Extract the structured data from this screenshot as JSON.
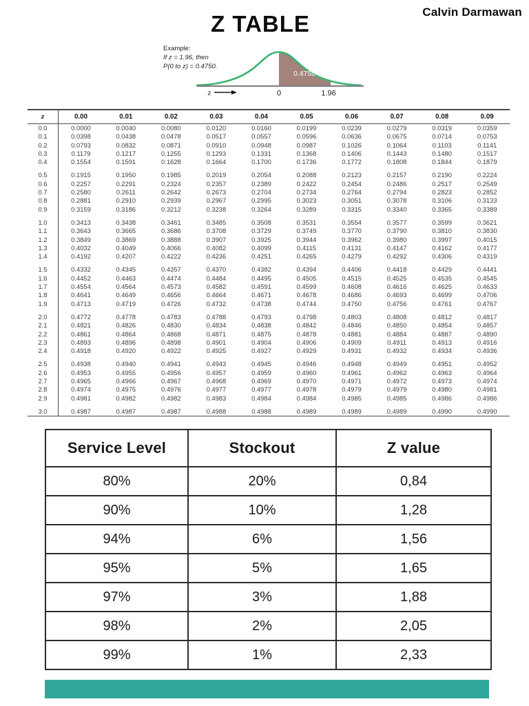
{
  "page": {
    "title": "Z TABLE",
    "author": "Calvin Darmawan"
  },
  "example": {
    "line1": "Example:",
    "line2": "If z = 1.96, then",
    "line3": "P(0 to z) = 0.4750.",
    "area_label": "0.4750",
    "axis_var": "z",
    "tick_zero": "0",
    "tick_z": "1.96",
    "curve_color": "#3cb371",
    "area_color": "#a3837c",
    "axis_color": "#7d7d7d"
  },
  "z_table": {
    "corner": "z",
    "columns": [
      "0.00",
      "0.01",
      "0.02",
      "0.03",
      "0.04",
      "0.05",
      "0.06",
      "0.07",
      "0.08",
      "0.09"
    ],
    "rows": [
      {
        "z": "0.0",
        "v": [
          "0.0000",
          "0.0040",
          "0.0080",
          "0.0120",
          "0.0160",
          "0.0199",
          "0.0239",
          "0.0279",
          "0.0319",
          "0.0359"
        ]
      },
      {
        "z": "0.1",
        "v": [
          "0.0398",
          "0.0438",
          "0.0478",
          "0.0517",
          "0.0557",
          "0.0596",
          "0.0636",
          "0.0675",
          "0.0714",
          "0.0753"
        ]
      },
      {
        "z": "0.2",
        "v": [
          "0.0793",
          "0.0832",
          "0.0871",
          "0.0910",
          "0.0948",
          "0.0987",
          "0.1026",
          "0.1064",
          "0.1103",
          "0.1141"
        ]
      },
      {
        "z": "0.3",
        "v": [
          "0.1179",
          "0.1217",
          "0.1255",
          "0.1293",
          "0.1331",
          "0.1368",
          "0.1406",
          "0.1443",
          "0.1480",
          "0.1517"
        ]
      },
      {
        "z": "0.4",
        "v": [
          "0.1554",
          "0.1591",
          "0.1628",
          "0.1664",
          "0.1700",
          "0.1736",
          "0.1772",
          "0.1808",
          "0.1844",
          "0.1879"
        ]
      },
      {
        "z": "0.5",
        "v": [
          "0.1915",
          "0.1950",
          "0.1985",
          "0.2019",
          "0.2054",
          "0.2088",
          "0.2123",
          "0.2157",
          "0.2190",
          "0.2224"
        ]
      },
      {
        "z": "0.6",
        "v": [
          "0.2257",
          "0.2291",
          "0.2324",
          "0.2357",
          "0.2389",
          "0.2422",
          "0.2454",
          "0.2486",
          "0.2517",
          "0.2549"
        ]
      },
      {
        "z": "0.7",
        "v": [
          "0.2580",
          "0.2611",
          "0.2642",
          "0.2673",
          "0.2704",
          "0.2734",
          "0.2764",
          "0.2794",
          "0.2823",
          "0.2852"
        ]
      },
      {
        "z": "0.8",
        "v": [
          "0.2881",
          "0.2910",
          "0.2939",
          "0.2967",
          "0.2995",
          "0.3023",
          "0.3051",
          "0.3078",
          "0.3106",
          "0.3133"
        ]
      },
      {
        "z": "0.9",
        "v": [
          "0.3159",
          "0.3186",
          "0.3212",
          "0.3238",
          "0.3264",
          "0.3289",
          "0.3315",
          "0.3340",
          "0.3365",
          "0.3389"
        ]
      },
      {
        "z": "1.0",
        "v": [
          "0.3413",
          "0.3438",
          "0.3461",
          "0.3485",
          "0.3508",
          "0.3531",
          "0.3554",
          "0.3577",
          "0.3599",
          "0.3621"
        ]
      },
      {
        "z": "1.1",
        "v": [
          "0.3643",
          "0.3665",
          "0.3686",
          "0.3708",
          "0.3729",
          "0.3749",
          "0.3770",
          "0.3790",
          "0.3810",
          "0.3830"
        ]
      },
      {
        "z": "1.2",
        "v": [
          "0.3849",
          "0.3869",
          "0.3888",
          "0.3907",
          "0.3925",
          "0.3944",
          "0.3962",
          "0.3980",
          "0.3997",
          "0.4015"
        ]
      },
      {
        "z": "1.3",
        "v": [
          "0.4032",
          "0.4049",
          "0.4066",
          "0.4082",
          "0.4099",
          "0.4115",
          "0.4131",
          "0.4147",
          "0.4162",
          "0.4177"
        ]
      },
      {
        "z": "1.4",
        "v": [
          "0.4192",
          "0.4207",
          "0.4222",
          "0.4236",
          "0.4251",
          "0.4265",
          "0.4279",
          "0.4292",
          "0.4306",
          "0.4319"
        ]
      },
      {
        "z": "1.5",
        "v": [
          "0.4332",
          "0.4345",
          "0.4357",
          "0.4370",
          "0.4382",
          "0.4394",
          "0.4406",
          "0.4418",
          "0.4429",
          "0.4441"
        ]
      },
      {
        "z": "1.6",
        "v": [
          "0.4452",
          "0.4463",
          "0.4474",
          "0.4484",
          "0.4495",
          "0.4505",
          "0.4515",
          "0.4525",
          "0.4535",
          "0.4545"
        ]
      },
      {
        "z": "1.7",
        "v": [
          "0.4554",
          "0.4564",
          "0.4573",
          "0.4582",
          "0.4591",
          "0.4599",
          "0.4608",
          "0.4616",
          "0.4625",
          "0.4633"
        ]
      },
      {
        "z": "1.8",
        "v": [
          "0.4641",
          "0.4649",
          "0.4656",
          "0.4664",
          "0.4671",
          "0.4678",
          "0.4686",
          "0.4693",
          "0.4699",
          "0.4706"
        ]
      },
      {
        "z": "1.9",
        "v": [
          "0.4713",
          "0.4719",
          "0.4726",
          "0.4732",
          "0.4738",
          "0.4744",
          "0.4750",
          "0.4756",
          "0.4761",
          "0.4767"
        ]
      },
      {
        "z": "2.0",
        "v": [
          "0.4772",
          "0.4778",
          "0.4783",
          "0.4788",
          "0.4793",
          "0.4798",
          "0.4803",
          "0.4808",
          "0.4812",
          "0.4817"
        ]
      },
      {
        "z": "2.1",
        "v": [
          "0.4821",
          "0.4826",
          "0.4830",
          "0.4834",
          "0.4838",
          "0.4842",
          "0.4846",
          "0.4850",
          "0.4854",
          "0.4857"
        ]
      },
      {
        "z": "2.2",
        "v": [
          "0.4861",
          "0.4864",
          "0.4868",
          "0.4871",
          "0.4875",
          "0.4878",
          "0.4881",
          "0.4884",
          "0.4887",
          "0.4890"
        ]
      },
      {
        "z": "2.3",
        "v": [
          "0.4893",
          "0.4896",
          "0.4898",
          "0.4901",
          "0.4904",
          "0.4906",
          "0.4909",
          "0.4911",
          "0.4913",
          "0.4916"
        ]
      },
      {
        "z": "2.4",
        "v": [
          "0.4918",
          "0.4920",
          "0.4922",
          "0.4925",
          "0.4927",
          "0.4929",
          "0.4931",
          "0.4932",
          "0.4934",
          "0.4936"
        ]
      },
      {
        "z": "2.5",
        "v": [
          "0.4938",
          "0.4940",
          "0.4941",
          "0.4943",
          "0.4945",
          "0.4946",
          "0.4948",
          "0.4949",
          "0.4951",
          "0.4952"
        ]
      },
      {
        "z": "2.6",
        "v": [
          "0.4953",
          "0.4955",
          "0.4956",
          "0.4957",
          "0.4959",
          "0.4960",
          "0.4961",
          "0.4962",
          "0.4963",
          "0.4964"
        ]
      },
      {
        "z": "2.7",
        "v": [
          "0.4965",
          "0.4966",
          "0.4967",
          "0.4968",
          "0.4969",
          "0.4970",
          "0.4971",
          "0.4972",
          "0.4973",
          "0.4974"
        ]
      },
      {
        "z": "2.8",
        "v": [
          "0.4974",
          "0.4975",
          "0.4976",
          "0.4977",
          "0.4977",
          "0.4978",
          "0.4979",
          "0.4979",
          "0.4980",
          "0.4981"
        ]
      },
      {
        "z": "2.9",
        "v": [
          "0.4981",
          "0.4982",
          "0.4982",
          "0.4983",
          "0.4984",
          "0.4984",
          "0.4985",
          "0.4985",
          "0.4986",
          "0.4986"
        ]
      },
      {
        "z": "3.0",
        "v": [
          "0.4987",
          "0.4987",
          "0.4987",
          "0.4988",
          "0.4988",
          "0.4989",
          "0.4989",
          "0.4989",
          "0.4990",
          "0.4990"
        ]
      }
    ],
    "group_size": 5
  },
  "service_table": {
    "headers": [
      "Service Level",
      "Stockout",
      "Z value"
    ],
    "rows": [
      [
        "80%",
        "20%",
        "0,84"
      ],
      [
        "90%",
        "10%",
        "1,28"
      ],
      [
        "94%",
        "6%",
        "1,56"
      ],
      [
        "95%",
        "5%",
        "1,65"
      ],
      [
        "97%",
        "3%",
        "1,88"
      ],
      [
        "98%",
        "2%",
        "2,05"
      ],
      [
        "99%",
        "1%",
        "2,33"
      ]
    ]
  },
  "footer": {
    "bar_color": "#2fa79b"
  }
}
